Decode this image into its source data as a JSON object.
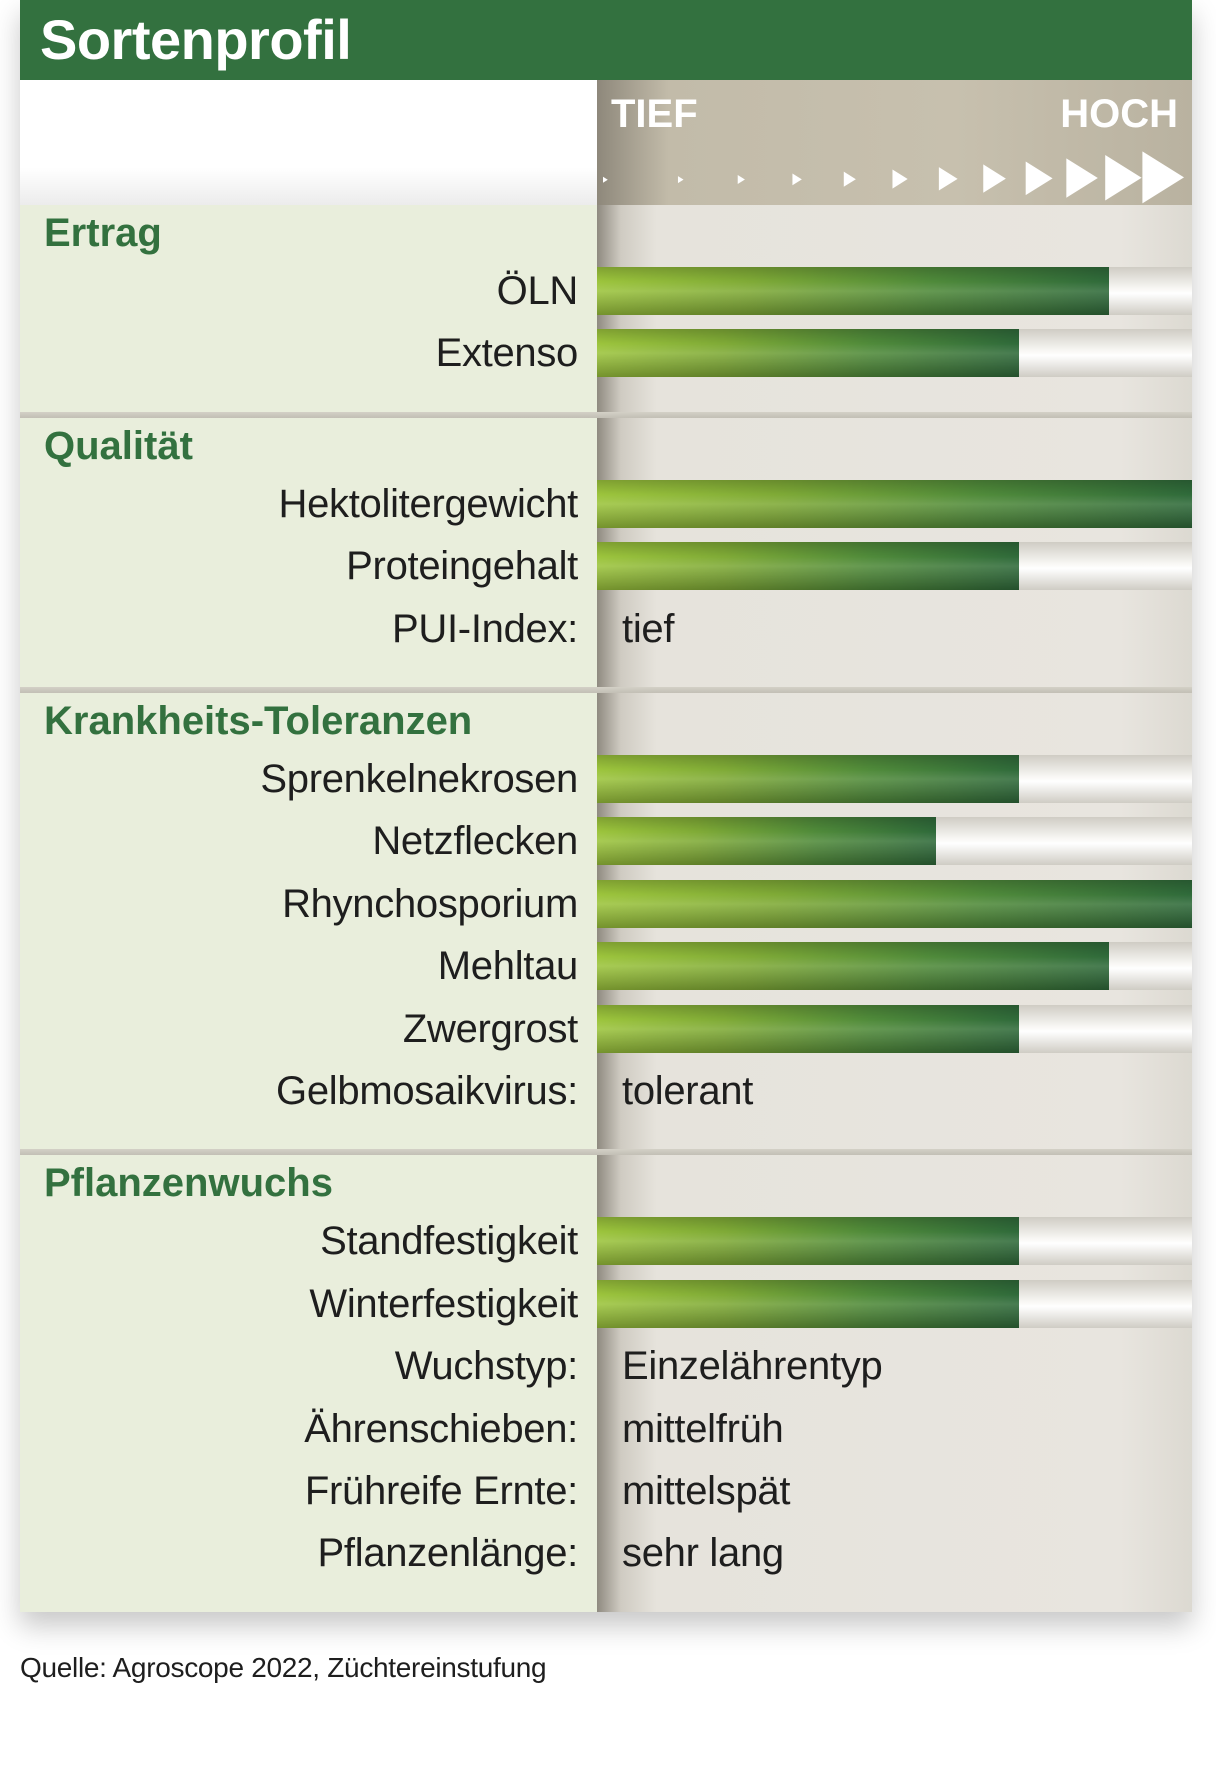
{
  "title": "Sortenprofil",
  "scale": {
    "low": "TIEF",
    "high": "HOCH"
  },
  "source": "Quelle: Agroscope 2022, Züchtereinstufung",
  "colors": {
    "brand_green": "#33713f",
    "bar_light": "#9cc43c",
    "bar_dark": "#2f6a3a",
    "panel_left": "#e9eedc"
  },
  "chart_data": {
    "type": "bar",
    "orientation": "horizontal",
    "scale_labels": [
      "TIEF",
      "HOCH"
    ],
    "xlim": [
      0,
      1
    ],
    "sections": [
      {
        "name": "Ertrag",
        "rows": [
          {
            "label": "ÖLN",
            "value": 0.86
          },
          {
            "label": "Extenso",
            "value": 0.71
          }
        ]
      },
      {
        "name": "Qualität",
        "rows": [
          {
            "label": "Hektolitergewicht",
            "value": 1.0
          },
          {
            "label": "Proteingehalt",
            "value": 0.71
          },
          {
            "label": "PUI-Index:",
            "text": "tief"
          }
        ]
      },
      {
        "name": "Krankheits-Toleranzen",
        "rows": [
          {
            "label": "Sprenkelnekrosen",
            "value": 0.71
          },
          {
            "label": "Netzflecken",
            "value": 0.57
          },
          {
            "label": "Rhynchosporium",
            "value": 1.0
          },
          {
            "label": "Mehltau",
            "value": 0.86
          },
          {
            "label": "Zwergrost",
            "value": 0.71
          },
          {
            "label": "Gelbmosaikvirus:",
            "text": "tolerant"
          }
        ]
      },
      {
        "name": "Pflanzenwuchs",
        "rows": [
          {
            "label": "Standfestigkeit",
            "value": 0.71
          },
          {
            "label": "Winterfestigkeit",
            "value": 0.71
          },
          {
            "label": "Wuchstyp:",
            "text": "Einzelährentyp"
          },
          {
            "label": "Ährenschieben:",
            "text": "mittelfrüh"
          },
          {
            "label": "Frühreife Ernte:",
            "text": "mittelspät"
          },
          {
            "label": "Pflanzenlänge:",
            "text": "sehr lang"
          }
        ]
      }
    ]
  }
}
